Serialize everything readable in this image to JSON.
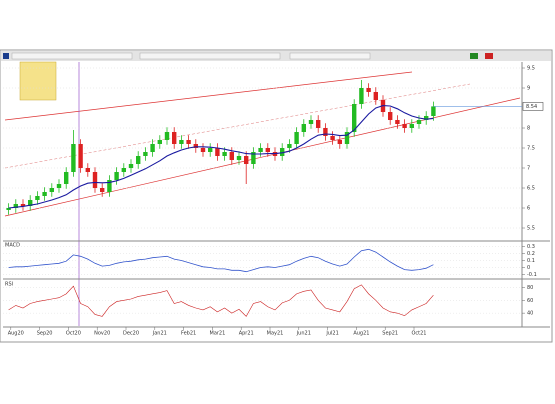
{
  "chart_data": {
    "type": "candlestick",
    "categories": [
      null,
      "Aug20",
      null,
      null,
      null,
      "Sep20",
      null,
      null,
      null,
      "Oct20",
      null,
      null,
      null,
      "Nov20",
      null,
      null,
      null,
      "Dec20",
      null,
      null,
      null,
      "Jan21",
      null,
      null,
      null,
      "Feb21",
      null,
      null,
      null,
      "Mar21",
      null,
      null,
      null,
      "Apr21",
      null,
      null,
      null,
      "May21",
      null,
      null,
      null,
      "Jun21",
      null,
      null,
      null,
      "Jul21",
      null,
      null,
      null,
      "Aug21",
      null,
      null,
      null,
      "Sep21",
      null,
      null,
      null,
      "Oct21",
      null,
      null
    ],
    "open": [
      5.95,
      6.0,
      6.1,
      6.05,
      6.2,
      6.3,
      6.4,
      6.5,
      6.6,
      6.9,
      7.6,
      7.0,
      6.9,
      6.5,
      6.4,
      6.7,
      6.9,
      7.0,
      7.1,
      7.3,
      7.4,
      7.6,
      7.7,
      7.9,
      7.6,
      7.7,
      7.6,
      7.5,
      7.4,
      7.5,
      7.3,
      7.4,
      7.2,
      7.3,
      7.1,
      7.4,
      7.5,
      7.4,
      7.3,
      7.5,
      7.6,
      7.9,
      8.1,
      8.2,
      8.0,
      7.8,
      7.7,
      7.6,
      7.9,
      8.6,
      9.0,
      8.9,
      8.7,
      8.4,
      8.2,
      8.1,
      8.0,
      8.1,
      8.2,
      8.3
    ],
    "high": [
      6.12,
      6.22,
      6.22,
      6.32,
      6.42,
      6.52,
      6.62,
      6.72,
      7.02,
      7.95,
      7.72,
      7.12,
      7.02,
      6.62,
      6.82,
      7.02,
      7.12,
      7.22,
      7.42,
      7.52,
      7.72,
      7.82,
      8.02,
      8.02,
      7.82,
      7.82,
      7.72,
      7.62,
      7.62,
      7.62,
      7.52,
      7.52,
      7.42,
      7.42,
      7.52,
      7.62,
      7.62,
      7.52,
      7.62,
      7.72,
      8.02,
      8.22,
      8.32,
      8.32,
      8.12,
      7.92,
      7.82,
      8.02,
      8.72,
      9.2,
      9.12,
      9.02,
      8.82,
      8.52,
      8.32,
      8.22,
      8.22,
      8.32,
      8.42,
      8.66
    ],
    "low": [
      5.83,
      5.88,
      5.93,
      5.93,
      6.08,
      6.18,
      6.28,
      6.38,
      6.48,
      6.78,
      6.88,
      6.78,
      6.38,
      6.28,
      6.28,
      6.58,
      6.78,
      6.88,
      6.98,
      7.18,
      7.28,
      7.48,
      7.58,
      7.48,
      7.48,
      7.48,
      7.38,
      7.28,
      7.28,
      7.18,
      7.18,
      7.08,
      7.08,
      6.6,
      6.98,
      7.28,
      7.28,
      7.18,
      7.18,
      7.38,
      7.48,
      7.78,
      7.98,
      7.88,
      7.68,
      7.58,
      7.48,
      7.48,
      7.78,
      8.48,
      8.78,
      8.58,
      8.28,
      8.08,
      7.98,
      7.88,
      7.88,
      7.98,
      8.08,
      8.18
    ],
    "close": [
      6.0,
      6.1,
      6.05,
      6.2,
      6.3,
      6.4,
      6.5,
      6.6,
      6.9,
      7.6,
      7.0,
      6.9,
      6.5,
      6.4,
      6.7,
      6.9,
      7.0,
      7.1,
      7.3,
      7.4,
      7.6,
      7.7,
      7.9,
      7.6,
      7.7,
      7.6,
      7.5,
      7.4,
      7.5,
      7.3,
      7.4,
      7.2,
      7.3,
      7.1,
      7.4,
      7.5,
      7.4,
      7.3,
      7.5,
      7.6,
      7.9,
      8.1,
      8.2,
      8.0,
      7.8,
      7.7,
      7.6,
      7.9,
      8.6,
      9.0,
      8.9,
      8.7,
      8.4,
      8.2,
      8.1,
      8.0,
      8.1,
      8.2,
      8.3,
      8.54
    ],
    "up_color": "#22bb22",
    "down_color": "#dd2222",
    "ma": {
      "color": "#1a1aa0",
      "values": [
        6.0,
        6.02,
        6.04,
        6.07,
        6.1,
        6.15,
        6.2,
        6.26,
        6.33,
        6.45,
        6.55,
        6.62,
        6.64,
        6.63,
        6.64,
        6.68,
        6.74,
        6.82,
        6.9,
        6.98,
        7.08,
        7.18,
        7.3,
        7.38,
        7.45,
        7.5,
        7.53,
        7.53,
        7.52,
        7.5,
        7.47,
        7.43,
        7.4,
        7.36,
        7.35,
        7.35,
        7.36,
        7.36,
        7.38,
        7.42,
        7.5,
        7.6,
        7.72,
        7.82,
        7.85,
        7.84,
        7.81,
        7.82,
        7.95,
        8.15,
        8.35,
        8.5,
        8.56,
        8.55,
        8.48,
        8.38,
        8.3,
        8.25,
        8.22,
        8.24
      ]
    },
    "ylim": [
      5.2,
      9.65
    ],
    "yticks": [
      5.5,
      6,
      6.5,
      7,
      7.5,
      8,
      9,
      9.5
    ],
    "macd": {
      "title": "MACD",
      "color": "#3355cc",
      "ylim": [
        -0.15,
        0.35
      ],
      "yticks": [
        -0.1,
        0,
        0.1,
        0.2,
        0.3
      ],
      "values": [
        0.0,
        0.01,
        0.01,
        0.02,
        0.03,
        0.04,
        0.05,
        0.06,
        0.09,
        0.18,
        0.16,
        0.12,
        0.06,
        0.02,
        0.03,
        0.06,
        0.08,
        0.09,
        0.11,
        0.12,
        0.14,
        0.15,
        0.16,
        0.12,
        0.1,
        0.07,
        0.04,
        0.01,
        0.0,
        -0.02,
        -0.02,
        -0.04,
        -0.04,
        -0.06,
        -0.03,
        0.0,
        0.01,
        0.0,
        0.02,
        0.04,
        0.09,
        0.13,
        0.16,
        0.14,
        0.09,
        0.05,
        0.02,
        0.05,
        0.15,
        0.24,
        0.26,
        0.22,
        0.15,
        0.08,
        0.02,
        -0.03,
        -0.04,
        -0.03,
        -0.01,
        0.04
      ]
    },
    "rsi": {
      "title": "RSI",
      "color": "#cc2222",
      "ylim": [
        20,
        90
      ],
      "yticks": [
        40,
        60,
        80
      ],
      "values": [
        45,
        52,
        48,
        55,
        58,
        60,
        62,
        64,
        70,
        82,
        55,
        50,
        38,
        35,
        50,
        58,
        60,
        62,
        66,
        68,
        70,
        72,
        75,
        55,
        58,
        52,
        48,
        45,
        50,
        42,
        48,
        40,
        46,
        35,
        55,
        58,
        50,
        45,
        56,
        60,
        70,
        74,
        76,
        60,
        48,
        45,
        42,
        58,
        78,
        84,
        70,
        60,
        48,
        42,
        40,
        36,
        45,
        50,
        55,
        68
      ]
    }
  }
}
